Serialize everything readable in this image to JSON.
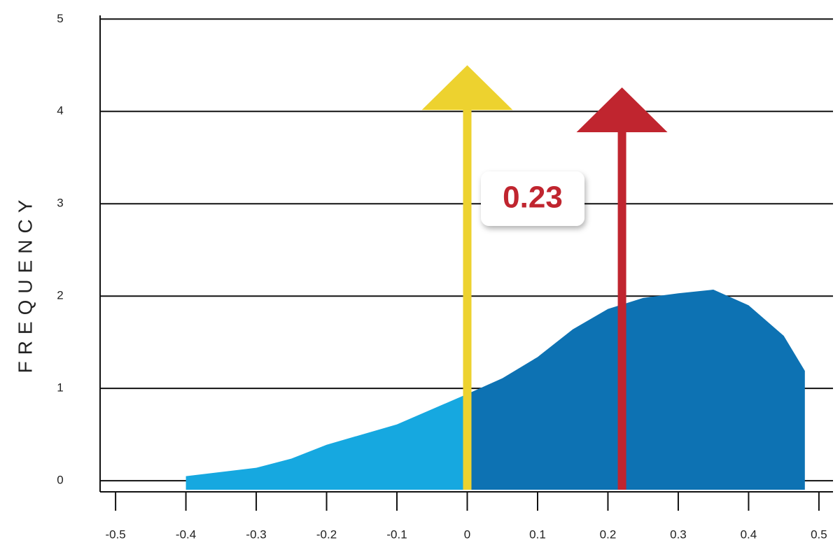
{
  "chart_data": {
    "type": "area",
    "y_label": "FREQUENCY",
    "xlim": [
      -0.522,
      0.52
    ],
    "ylim": [
      -0.12,
      5.04
    ],
    "xticks": [
      -0.5,
      -0.4,
      -0.3,
      -0.2,
      -0.1,
      0,
      0.1,
      0.2,
      0.3,
      0.4,
      0.5
    ],
    "yticks": [
      0,
      1,
      2,
      3,
      4,
      5
    ],
    "grid": true,
    "series": [
      {
        "color": "#16a8e0",
        "x": [
          -0.4,
          -0.3,
          -0.25,
          -0.2,
          -0.1,
          0
        ],
        "values": [
          0.05,
          0.14,
          0.24,
          0.39,
          0.61,
          0.94
        ]
      },
      {
        "color": "#0d72b3",
        "x": [
          0,
          0.05,
          0.1,
          0.15,
          0.2,
          0.25,
          0.3,
          0.35,
          0.4,
          0.45,
          0.48
        ],
        "values": [
          0.94,
          1.11,
          1.34,
          1.64,
          1.86,
          1.98,
          2.03,
          2.07,
          1.9,
          1.57,
          1.19
        ]
      }
    ],
    "arrows": [
      {
        "x": 0,
        "top": 4.5,
        "color": "#edd22f"
      },
      {
        "x": 0.22,
        "top": 4.26,
        "color": "#c0252f"
      }
    ],
    "annotation": "0.23"
  }
}
